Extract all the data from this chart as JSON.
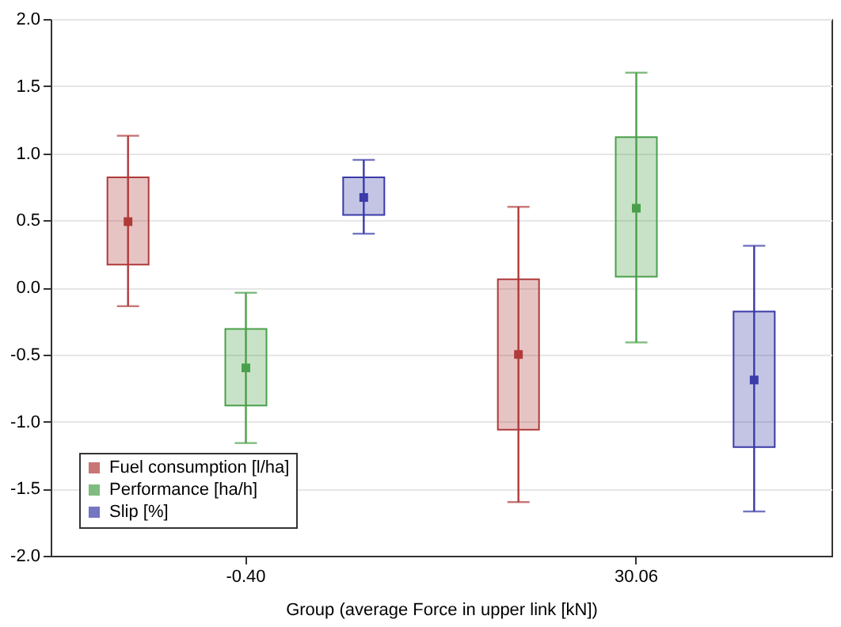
{
  "chart_data": {
    "type": "box",
    "xlabel": "Group (average Force in upper link [kN])",
    "categories": [
      "-0.40",
      "30.06"
    ],
    "series": [
      {
        "name": "Fuel consumption [l/ha]",
        "color": "#b03a3a",
        "boxes": [
          {
            "low": -0.14,
            "q1": 0.17,
            "median": 0.49,
            "q3": 0.82,
            "high": 1.13
          },
          {
            "low": -1.6,
            "q1": -1.06,
            "median": -0.5,
            "q3": 0.06,
            "high": 0.6
          }
        ]
      },
      {
        "name": "Performance [ha/h]",
        "color": "#4aa04a",
        "boxes": [
          {
            "low": -1.16,
            "q1": -0.88,
            "median": -0.6,
            "q3": -0.31,
            "high": -0.04
          },
          {
            "low": -0.41,
            "q1": 0.08,
            "median": 0.59,
            "q3": 1.12,
            "high": 1.6
          }
        ]
      },
      {
        "name": "Slip [%]",
        "color": "#3a3aa8",
        "boxes": [
          {
            "low": 0.4,
            "q1": 0.54,
            "median": 0.67,
            "q3": 0.82,
            "high": 0.95
          },
          {
            "low": -1.67,
            "q1": -1.19,
            "median": -0.69,
            "q3": -0.18,
            "high": 0.31
          }
        ]
      }
    ],
    "ylim": [
      -2.0,
      2.0
    ],
    "yticks": [
      {
        "value": -2,
        "label": "-2.0"
      },
      {
        "value": -1.5,
        "label": "-1.5"
      },
      {
        "value": -1,
        "label": "-1.0"
      },
      {
        "value": -0.5,
        "label": "-0.5"
      },
      {
        "value": 0,
        "label": "0.0"
      },
      {
        "value": 0.5,
        "label": "0.5"
      },
      {
        "value": 1,
        "label": "1.0"
      },
      {
        "value": 1.5,
        "label": "1.5"
      },
      {
        "value": 2,
        "label": "2.0"
      }
    ],
    "grid": "y",
    "legend": "bottom left",
    "marker": "square"
  }
}
